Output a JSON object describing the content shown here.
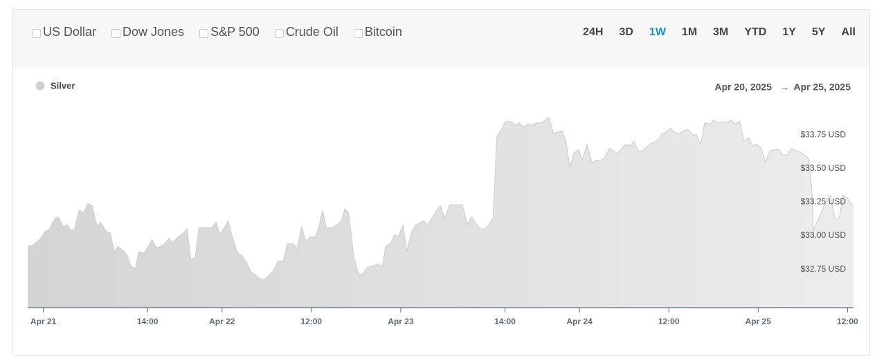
{
  "header": {
    "compare_options": [
      "US Dollar",
      "Dow Jones",
      "S&P 500",
      "Crude Oil",
      "Bitcoin"
    ],
    "ranges": [
      "24H",
      "3D",
      "1W",
      "1M",
      "3M",
      "YTD",
      "1Y",
      "5Y",
      "All"
    ],
    "active_range": "1W"
  },
  "chart_data": {
    "type": "area",
    "date_range": {
      "start": "Apr 20, 2025",
      "separator": "→",
      "end": "Apr 25, 2025"
    },
    "x": [
      -2.1,
      -1.4,
      -0.5,
      0.2,
      0.8,
      1.6,
      2.0,
      2.7,
      3.2,
      3.7,
      4.2,
      4.8,
      5.4,
      6.0,
      6.6,
      7.2,
      7.7,
      8.5,
      9.0,
      9.5,
      10.0,
      10.9,
      11.3,
      11.8,
      12.4,
      12.8,
      13.5,
      14.0,
      14.6,
      15.2,
      16.1,
      16.9,
      17.4,
      18.1,
      18.8,
      19.3,
      19.8,
      20.4,
      20.9,
      21.7,
      22.6,
      23.2,
      23.7,
      24.3,
      24.8,
      25.4,
      26.0,
      26.7,
      27.3,
      27.9,
      28.5,
      29.0,
      29.6,
      30.2,
      30.9,
      31.5,
      32.2,
      32.8,
      33.6,
      34.1,
      34.7,
      35.3,
      35.8,
      36.5,
      37.0,
      37.5,
      38.0,
      38.8,
      39.5,
      40.1,
      40.5,
      41.0,
      41.7,
      42.3,
      42.9,
      43.4,
      44.4,
      44.9,
      45.5,
      46.0,
      46.6,
      47.2,
      47.7,
      48.3,
      48.8,
      49.4,
      50.0,
      51.1,
      51.6,
      52.2,
      52.7,
      53.3,
      53.9,
      54.6,
      56.3,
      56.9,
      57.5,
      58.1,
      58.7,
      59.3,
      59.8,
      60.4,
      60.9,
      61.6,
      62.1,
      62.8,
      63.4,
      63.9,
      64.5,
      65.1,
      65.6,
      66.2,
      66.9,
      67.4,
      67.9,
      68.5,
      69.0,
      69.7,
      70.2,
      70.7,
      71.3,
      71.9,
      72.4,
      73.0,
      73.7,
      74.2,
      74.9,
      75.4,
      76.0,
      76.6,
      77.1,
      77.7,
      78.2,
      78.8,
      79.3,
      79.9,
      80.5,
      81.0,
      81.8,
      82.5,
      83.1,
      83.6,
      84.2,
      84.8,
      85.4,
      86.0,
      86.6,
      87.2,
      87.7,
      88.3,
      88.8,
      89.5,
      90.0,
      90.6,
      91.3,
      91.8,
      92.4,
      92.9,
      93.5,
      94.1,
      94.7,
      95.3,
      95.8,
      96.4,
      97.0,
      97.6,
      98.1,
      98.8,
      99.3,
      99.9,
      100.5,
      101.1,
      101.7,
      102.2,
      102.8,
      103.2,
      103.4,
      104.0,
      104.6,
      105.2,
      105.7,
      106.3,
      106.9,
      107.4,
      108.0,
      108.5,
      108.8
    ],
    "series": [
      {
        "name": "Silver",
        "color": "#d0d0d0",
        "values": [
          32.92,
          32.93,
          32.97,
          33.03,
          33.05,
          33.13,
          33.14,
          33.07,
          33.08,
          33.04,
          33.05,
          33.19,
          33.17,
          33.24,
          33.22,
          33.07,
          33.1,
          33.03,
          33.02,
          32.88,
          32.92,
          32.88,
          32.85,
          32.77,
          32.76,
          32.88,
          32.87,
          32.91,
          32.97,
          32.91,
          32.93,
          32.98,
          32.95,
          32.99,
          33.02,
          33.05,
          32.83,
          32.83,
          33.06,
          33.06,
          33.06,
          33.1,
          33.01,
          33.06,
          33.11,
          32.99,
          32.88,
          32.85,
          32.8,
          32.73,
          32.71,
          32.68,
          32.67,
          32.7,
          32.74,
          32.81,
          32.81,
          32.94,
          32.94,
          32.9,
          33.07,
          32.95,
          32.99,
          32.99,
          33.06,
          33.19,
          33.06,
          33.06,
          33.08,
          33.12,
          33.2,
          33.17,
          32.84,
          32.72,
          32.71,
          32.76,
          32.78,
          32.79,
          32.77,
          32.92,
          32.94,
          33.01,
          32.99,
          33.08,
          32.88,
          33.02,
          33.08,
          33.11,
          33.08,
          33.13,
          33.18,
          33.22,
          33.13,
          33.23,
          33.23,
          33.08,
          33.14,
          33.09,
          33.05,
          33.05,
          33.08,
          33.13,
          33.73,
          33.8,
          33.85,
          33.85,
          33.82,
          33.84,
          33.81,
          33.83,
          33.82,
          33.84,
          33.84,
          33.86,
          33.88,
          33.76,
          33.77,
          33.78,
          33.7,
          33.51,
          33.62,
          33.64,
          33.56,
          33.68,
          33.54,
          33.56,
          33.56,
          33.58,
          33.65,
          33.63,
          33.61,
          33.65,
          33.68,
          33.67,
          33.7,
          33.63,
          33.63,
          33.66,
          33.69,
          33.71,
          33.76,
          33.77,
          33.8,
          33.77,
          33.76,
          33.78,
          33.79,
          33.75,
          33.75,
          33.68,
          33.84,
          33.83,
          33.86,
          33.84,
          33.85,
          33.84,
          33.86,
          33.83,
          33.85,
          33.7,
          33.73,
          33.67,
          33.68,
          33.65,
          33.55,
          33.63,
          33.64,
          33.64,
          33.6,
          33.6,
          33.65,
          33.63,
          33.62,
          33.6,
          33.57,
          33.35,
          33.04,
          33.11,
          33.19,
          33.27,
          33.3,
          33.13,
          33.13,
          33.3,
          33.28,
          33.23,
          33.23
        ]
      }
    ],
    "xlim": [
      -2.1,
      108.8
    ],
    "xticks": [
      {
        "value": 0,
        "label": "Apr 21"
      },
      {
        "value": 14,
        "label": "14:00"
      },
      {
        "value": 24,
        "label": "Apr 22"
      },
      {
        "value": 36,
        "label": "12:00"
      },
      {
        "value": 48,
        "label": "Apr 23"
      },
      {
        "value": 62,
        "label": "14:00"
      },
      {
        "value": 72,
        "label": "Apr 24"
      },
      {
        "value": 84,
        "label": "12:00"
      },
      {
        "value": 96,
        "label": "Apr 25"
      },
      {
        "value": 108,
        "label": "12:00"
      }
    ],
    "ylim": [
      32.465,
      34.0
    ],
    "yticks": [
      {
        "value": 32.75,
        "label": "$32.75 USD"
      },
      {
        "value": 33.0,
        "label": "$33.00 USD"
      },
      {
        "value": 33.25,
        "label": "$33.25 USD"
      },
      {
        "value": 33.5,
        "label": "$33.50 USD"
      },
      {
        "value": 33.75,
        "label": "$33.75 USD"
      }
    ],
    "grid": false
  }
}
